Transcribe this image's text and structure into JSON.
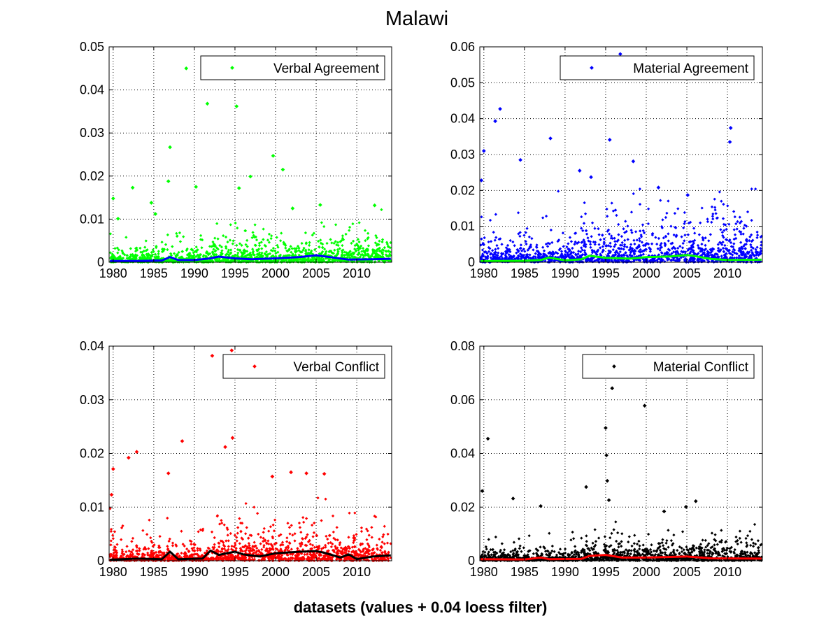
{
  "figure": {
    "title": "Malawi",
    "xlabel": "datasets (values + 0.04 loess filter)"
  },
  "chart_data": [
    {
      "type": "scatter",
      "panel": "top-left",
      "legend": "Verbal Agreement",
      "legend_position": "top-right",
      "grid": true,
      "xlim": [
        1979.5,
        2014.3
      ],
      "ylim": [
        0,
        0.05
      ],
      "xticks": [
        1980,
        1985,
        1990,
        1995,
        2000,
        2005,
        2010
      ],
      "xtick_labels": [
        "1980",
        "1985",
        "1990",
        "1995",
        "2000",
        "2005",
        "2010"
      ],
      "yticks": [
        0,
        0.01,
        0.02,
        0.03,
        0.04,
        0.05
      ],
      "ytick_labels": [
        "0",
        "0.01",
        "0.02",
        "0.03",
        "0.04",
        "0.05"
      ],
      "point_color": "#00ff00",
      "trend_color": "#0000ff",
      "typical_level": 0.003,
      "outliers": [
        {
          "x": 1989.0,
          "y": 0.045
        },
        {
          "x": 1991.6,
          "y": 0.0368
        },
        {
          "x": 1995.2,
          "y": 0.0362
        },
        {
          "x": 1987.0,
          "y": 0.0267
        },
        {
          "x": 1999.7,
          "y": 0.0247
        },
        {
          "x": 2000.9,
          "y": 0.0215
        },
        {
          "x": 1996.9,
          "y": 0.0199
        },
        {
          "x": 1986.8,
          "y": 0.0188
        },
        {
          "x": 1982.4,
          "y": 0.0173
        },
        {
          "x": 1990.2,
          "y": 0.0175
        },
        {
          "x": 1995.5,
          "y": 0.0172
        },
        {
          "x": 1980.0,
          "y": 0.0148
        },
        {
          "x": 1984.7,
          "y": 0.0138
        },
        {
          "x": 2005.5,
          "y": 0.0133
        },
        {
          "x": 2012.2,
          "y": 0.0132
        },
        {
          "x": 2002.1,
          "y": 0.0125
        },
        {
          "x": 1985.2,
          "y": 0.0112
        },
        {
          "x": 1980.6,
          "y": 0.0101
        }
      ],
      "trend": {
        "x": [
          1979.6,
          1983,
          1986,
          1987,
          1988,
          1990,
          1992,
          1993,
          1995,
          1997,
          2000,
          2003,
          2005,
          2007,
          2009,
          2012,
          2014.2
        ],
        "y": [
          0.0003,
          0.0003,
          0.0004,
          0.0012,
          0.0005,
          0.0005,
          0.0009,
          0.0013,
          0.0009,
          0.0007,
          0.0009,
          0.0012,
          0.0016,
          0.0011,
          0.0006,
          0.0007,
          0.0008
        ]
      }
    },
    {
      "type": "scatter",
      "panel": "top-right",
      "legend": "Material Agreement",
      "legend_position": "top-right",
      "grid": true,
      "xlim": [
        1979.5,
        2014.3
      ],
      "ylim": [
        0,
        0.06
      ],
      "xticks": [
        1980,
        1985,
        1990,
        1995,
        2000,
        2005,
        2010
      ],
      "xtick_labels": [
        "1980",
        "1985",
        "1990",
        "1995",
        "2000",
        "2005",
        "2010"
      ],
      "yticks": [
        0,
        0.01,
        0.02,
        0.03,
        0.04,
        0.05,
        0.06
      ],
      "ytick_labels": [
        "0",
        "0.01",
        "0.02",
        "0.03",
        "0.04",
        "0.05",
        "0.06"
      ],
      "point_color": "#0000ff",
      "trend_color": "#00ff00",
      "typical_level": 0.006,
      "outliers": [
        {
          "x": 1996.8,
          "y": 0.058
        },
        {
          "x": 1982.0,
          "y": 0.0427
        },
        {
          "x": 1981.4,
          "y": 0.0393
        },
        {
          "x": 2010.4,
          "y": 0.0374
        },
        {
          "x": 2010.3,
          "y": 0.0335
        },
        {
          "x": 1988.2,
          "y": 0.0345
        },
        {
          "x": 1995.5,
          "y": 0.0341
        },
        {
          "x": 1980.0,
          "y": 0.031
        },
        {
          "x": 1984.5,
          "y": 0.0285
        },
        {
          "x": 1998.4,
          "y": 0.0281
        },
        {
          "x": 1991.8,
          "y": 0.0255
        },
        {
          "x": 1979.7,
          "y": 0.0228
        },
        {
          "x": 1993.2,
          "y": 0.0237
        },
        {
          "x": 2001.5,
          "y": 0.0208
        },
        {
          "x": 2005.1,
          "y": 0.0187
        }
      ],
      "trend": {
        "x": [
          1979.6,
          1985,
          1987,
          1988,
          1990,
          1992,
          1993,
          1995,
          1998,
          2000,
          2003,
          2005,
          2006,
          2008,
          2010,
          2014.2
        ],
        "y": [
          0.0003,
          0.0004,
          0.0006,
          0.0013,
          0.0005,
          0.0008,
          0.0018,
          0.0012,
          0.001,
          0.0014,
          0.0016,
          0.002,
          0.0017,
          0.0009,
          0.0006,
          0.0007
        ]
      }
    },
    {
      "type": "scatter",
      "panel": "bottom-left",
      "legend": "Verbal Conflict",
      "legend_position": "top-right",
      "grid": true,
      "xlim": [
        1979.5,
        2014.3
      ],
      "ylim": [
        0,
        0.04
      ],
      "xticks": [
        1980,
        1985,
        1990,
        1995,
        2000,
        2005,
        2010
      ],
      "xtick_labels": [
        "1980",
        "1985",
        "1990",
        "1995",
        "2000",
        "2005",
        "2010"
      ],
      "yticks": [
        0,
        0.01,
        0.02,
        0.03,
        0.04
      ],
      "ytick_labels": [
        "0",
        "0.01",
        "0.02",
        "0.03",
        "0.04"
      ],
      "point_color": "#ff0000",
      "trend_color": "#000000",
      "typical_level": 0.003,
      "outliers": [
        {
          "x": 1994.6,
          "y": 0.0392
        },
        {
          "x": 1992.2,
          "y": 0.0382
        },
        {
          "x": 1994.7,
          "y": 0.0229
        },
        {
          "x": 1988.5,
          "y": 0.0223
        },
        {
          "x": 1993.8,
          "y": 0.0212
        },
        {
          "x": 1982.9,
          "y": 0.0203
        },
        {
          "x": 1981.9,
          "y": 0.0192
        },
        {
          "x": 1980.0,
          "y": 0.0171
        },
        {
          "x": 1986.8,
          "y": 0.0163
        },
        {
          "x": 2006.0,
          "y": 0.0162
        },
        {
          "x": 1999.6,
          "y": 0.0157
        },
        {
          "x": 2001.9,
          "y": 0.0165
        },
        {
          "x": 2003.8,
          "y": 0.0163
        },
        {
          "x": 1979.8,
          "y": 0.0123
        }
      ],
      "trend": {
        "x": [
          1979.6,
          1983,
          1986,
          1987,
          1988,
          1991,
          1992,
          1993,
          1995,
          1996,
          1998,
          2000,
          2003,
          2005,
          2006,
          2008,
          2009,
          2010,
          2012,
          2014.2
        ],
        "y": [
          0.0002,
          0.0004,
          0.0003,
          0.0017,
          0.0003,
          0.0004,
          0.0019,
          0.0011,
          0.0017,
          0.0012,
          0.0008,
          0.0014,
          0.0017,
          0.0018,
          0.0015,
          0.0006,
          0.0012,
          0.0003,
          0.0008,
          0.001
        ]
      }
    },
    {
      "type": "scatter",
      "panel": "bottom-right",
      "legend": "Material Conflict",
      "legend_position": "top-right",
      "grid": true,
      "xlim": [
        1979.5,
        2014.3
      ],
      "ylim": [
        0,
        0.08
      ],
      "xticks": [
        1980,
        1985,
        1990,
        1995,
        2000,
        2005,
        2010
      ],
      "xtick_labels": [
        "1980",
        "1985",
        "1990",
        "1995",
        "2000",
        "2005",
        "2010"
      ],
      "yticks": [
        0,
        0.02,
        0.04,
        0.06,
        0.08
      ],
      "ytick_labels": [
        "0",
        "0.02",
        "0.04",
        "0.06",
        "0.08"
      ],
      "point_color": "#000000",
      "trend_color": "#ff0000",
      "typical_level": 0.004,
      "outliers": [
        {
          "x": 1995.8,
          "y": 0.0643
        },
        {
          "x": 1999.8,
          "y": 0.0578
        },
        {
          "x": 1995.0,
          "y": 0.0495
        },
        {
          "x": 1980.5,
          "y": 0.0455
        },
        {
          "x": 1995.1,
          "y": 0.0393
        },
        {
          "x": 1995.2,
          "y": 0.0298
        },
        {
          "x": 1992.6,
          "y": 0.0275
        },
        {
          "x": 1979.8,
          "y": 0.026
        },
        {
          "x": 1983.6,
          "y": 0.0232
        },
        {
          "x": 2006.1,
          "y": 0.0222
        },
        {
          "x": 1995.4,
          "y": 0.0226
        },
        {
          "x": 2004.9,
          "y": 0.0201
        },
        {
          "x": 1987.0,
          "y": 0.0204
        },
        {
          "x": 2002.2,
          "y": 0.0184
        }
      ],
      "trend": {
        "x": [
          1979.6,
          1985,
          1987,
          1988,
          1992,
          1993,
          1995,
          1997,
          2000,
          2005,
          2008,
          2014.2
        ],
        "y": [
          0.0006,
          0.0005,
          0.0012,
          0.0006,
          0.0007,
          0.0018,
          0.0022,
          0.0012,
          0.0012,
          0.0016,
          0.0009,
          0.0008
        ]
      }
    }
  ]
}
